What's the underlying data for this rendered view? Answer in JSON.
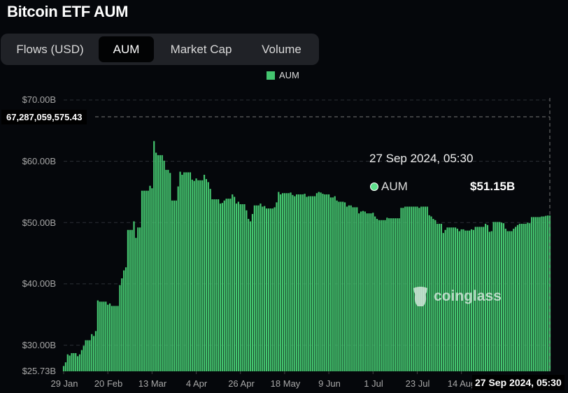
{
  "header": {
    "title": "Bitcoin ETF AUM"
  },
  "tabs": [
    {
      "label": "Flows (USD)",
      "active": false
    },
    {
      "label": "AUM",
      "active": true
    },
    {
      "label": "Market Cap",
      "active": false
    },
    {
      "label": "Volume",
      "active": false
    }
  ],
  "tooltip": {
    "date": "27 Sep 2024, 05:30",
    "series": "AUM",
    "value": "$51.15B"
  },
  "crosshair": {
    "y_value": "67,287,059,575.43",
    "x_value": "27 Sep 2024, 05:30"
  },
  "watermark": "coinglass",
  "colors": {
    "bar": "#44c56f",
    "background": "#05070b"
  },
  "chart_data": {
    "type": "bar",
    "title": "Bitcoin ETF AUM",
    "legend": [
      "AUM"
    ],
    "legend_position": "top-center",
    "grid": true,
    "ylim": [
      25.73,
      70
    ],
    "y_unit": "USD billions",
    "y_ticks": [
      "$70.00B",
      "$60.00B",
      "$50.00B",
      "$40.00B",
      "$30.00B",
      "$25.73B"
    ],
    "x_ticks": [
      "29 Jan",
      "20 Feb",
      "13 Mar",
      "4 Apr",
      "26 Apr",
      "18 May",
      "9 Jun",
      "1 Jul",
      "23 Jul",
      "14 Aug"
    ],
    "x_start": "2024-01-29",
    "x_end": "2024-09-27",
    "series": [
      {
        "name": "AUM",
        "values": [
          26.6,
          27.2,
          28.5,
          28.3,
          28.7,
          28.7,
          28.7,
          28.2,
          28.5,
          29.2,
          29.9,
          30.8,
          30.8,
          30.8,
          31.8,
          31.5,
          32.3,
          37.3,
          37.1,
          37.1,
          37.1,
          37.1,
          36.6,
          36.8,
          36.4,
          36.4,
          36.4,
          36.4,
          39.8,
          40.9,
          42.2,
          42.7,
          48.8,
          48.8,
          48.8,
          50.2,
          47.5,
          49.2,
          49.2,
          55.2,
          55.2,
          55.2,
          55.2,
          56.0,
          55.6,
          63.3,
          61.4,
          61.0,
          61.0,
          61.0,
          60.1,
          58.6,
          58.6,
          58.1,
          53.6,
          53.6,
          53.6,
          55.9,
          58.3,
          57.8,
          58.2,
          58.2,
          58.2,
          58.2,
          57.0,
          56.8,
          57.2,
          56.9,
          56.9,
          56.9,
          57.8,
          57.1,
          56.6,
          55.5,
          53.8,
          53.8,
          53.8,
          53.8,
          53.1,
          53.2,
          53.6,
          53.9,
          53.9,
          53.9,
          54.6,
          54.2,
          53.1,
          53.4,
          53.0,
          53.0,
          53.0,
          52.0,
          50.6,
          50.2,
          51.4,
          52.8,
          52.8,
          52.8,
          53.1,
          52.6,
          52.7,
          52.3,
          52.3,
          52.3,
          52.3,
          52.5,
          53.3,
          55.0,
          54.6,
          54.8,
          54.8,
          54.8,
          54.8,
          54.9,
          54.5,
          54.3,
          54.6,
          54.6,
          54.6,
          54.6,
          54.7,
          54.2,
          54.3,
          54.3,
          54.3,
          54.3,
          54.8,
          55.0,
          54.9,
          54.7,
          54.6,
          54.6,
          54.6,
          54.1,
          54.1,
          54.3,
          53.6,
          53.4,
          53.4,
          53.4,
          53.3,
          52.6,
          52.8,
          52.8,
          52.5,
          52.5,
          52.5,
          51.5,
          51.8,
          51.9,
          51.8,
          51.5,
          51.5,
          51.5,
          51.6,
          51.0,
          50.6,
          50.4,
          50.4,
          50.4,
          50.4,
          50.8,
          50.7,
          50.7,
          50.7,
          50.7,
          50.7,
          50.7,
          52.4,
          52.4,
          52.6,
          52.6,
          52.6,
          52.6,
          52.6,
          52.6,
          52.6,
          52.4,
          52.6,
          52.6,
          52.6,
          52.6,
          51.2,
          51.0,
          50.6,
          50.4,
          49.8,
          49.8,
          49.8,
          48.3,
          48.8,
          49.2,
          49.2,
          49.2,
          49.2,
          49.2,
          49.0,
          48.6,
          48.9,
          48.9,
          48.7,
          48.7,
          48.7,
          48.9,
          48.8,
          49.3,
          49.3,
          49.3,
          49.3,
          49.3,
          49.8,
          49.6,
          48.5,
          48.6,
          50.1,
          50.1,
          50.1,
          50.1,
          50.0,
          49.9,
          49.0,
          48.6,
          48.6,
          48.6,
          49.0,
          49.3,
          49.6,
          49.8,
          49.8,
          49.8,
          49.8,
          50.0,
          49.9,
          50.9,
          50.9,
          50.9,
          50.9,
          50.9,
          51.0,
          51.0,
          51.1,
          51.15,
          51.15
        ]
      }
    ]
  }
}
